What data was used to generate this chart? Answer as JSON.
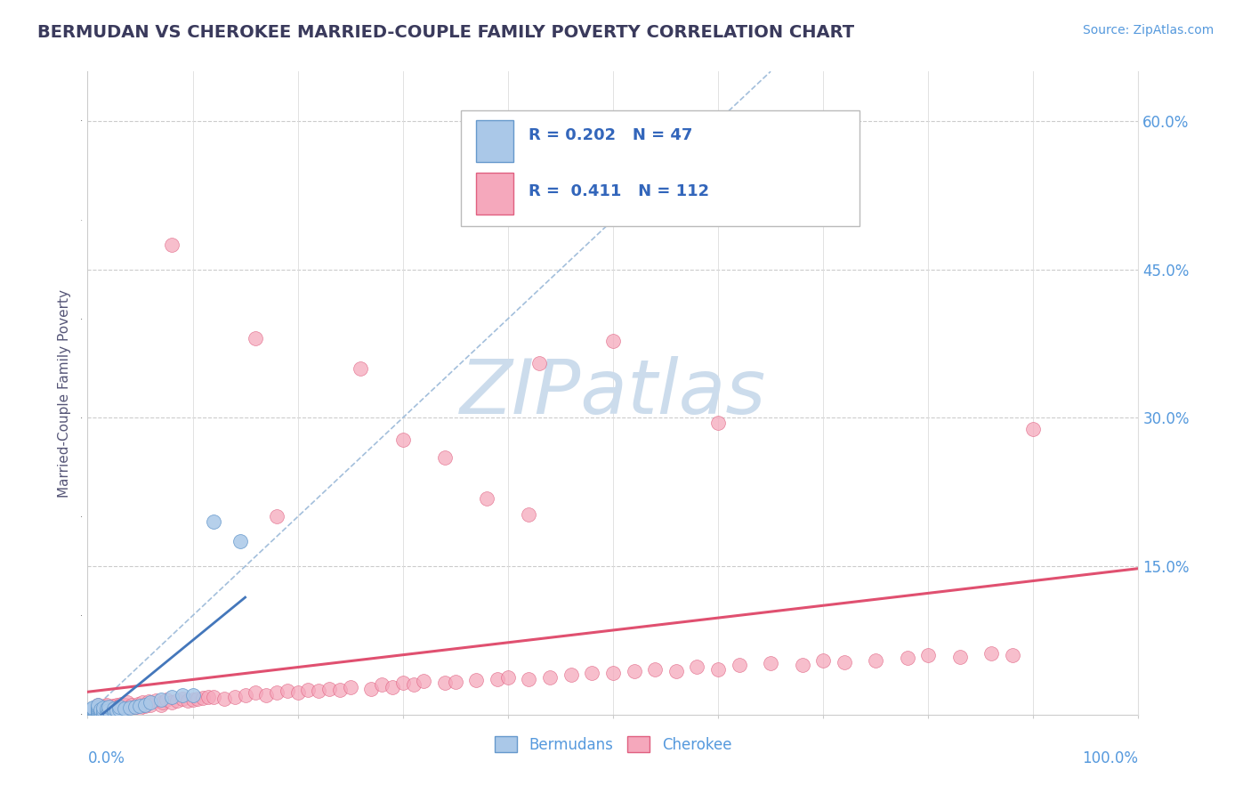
{
  "title": "BERMUDAN VS CHEROKEE MARRIED-COUPLE FAMILY POVERTY CORRELATION CHART",
  "source": "Source: ZipAtlas.com",
  "ylabel": "Married-Couple Family Poverty",
  "x_range": [
    0.0,
    1.0
  ],
  "y_range": [
    0.0,
    0.65
  ],
  "bermudans_R": 0.202,
  "bermudans_N": 47,
  "cherokee_R": 0.411,
  "cherokee_N": 112,
  "bermudan_color": "#aac8e8",
  "cherokee_color": "#f5a8bc",
  "bermudan_edge_color": "#6699cc",
  "cherokee_edge_color": "#e06080",
  "bermudan_line_color": "#4477bb",
  "cherokee_line_color": "#e05070",
  "diagonal_color": "#99b8d8",
  "background_color": "#ffffff",
  "title_color": "#3a3a5c",
  "watermark_color": "#ccdcec",
  "legend_text_color": "#3366bb",
  "axis_label_color": "#5599dd",
  "ylabel_color": "#555577",
  "grid_color": "#cccccc",
  "bermudan_x": [
    0.005,
    0.005,
    0.005,
    0.005,
    0.005,
    0.005,
    0.005,
    0.005,
    0.005,
    0.01,
    0.01,
    0.01,
    0.01,
    0.01,
    0.01,
    0.01,
    0.01,
    0.012,
    0.012,
    0.012,
    0.015,
    0.015,
    0.015,
    0.015,
    0.018,
    0.018,
    0.018,
    0.02,
    0.02,
    0.02,
    0.025,
    0.025,
    0.028,
    0.03,
    0.03,
    0.035,
    0.04,
    0.045,
    0.05,
    0.055,
    0.06,
    0.07,
    0.08,
    0.09,
    0.1,
    0.12,
    0.145
  ],
  "bermudan_y": [
    0.0,
    0.0,
    0.0,
    0.002,
    0.003,
    0.004,
    0.005,
    0.006,
    0.007,
    0.0,
    0.001,
    0.002,
    0.003,
    0.004,
    0.006,
    0.008,
    0.01,
    0.001,
    0.003,
    0.005,
    0.0,
    0.002,
    0.004,
    0.007,
    0.001,
    0.003,
    0.006,
    0.002,
    0.004,
    0.008,
    0.003,
    0.006,
    0.004,
    0.005,
    0.008,
    0.006,
    0.007,
    0.008,
    0.009,
    0.01,
    0.012,
    0.015,
    0.018,
    0.02,
    0.02,
    0.195,
    0.175
  ],
  "cherokee_x": [
    0.005,
    0.006,
    0.007,
    0.008,
    0.009,
    0.01,
    0.01,
    0.01,
    0.01,
    0.01,
    0.012,
    0.012,
    0.013,
    0.014,
    0.015,
    0.015,
    0.015,
    0.016,
    0.017,
    0.018,
    0.02,
    0.02,
    0.022,
    0.024,
    0.025,
    0.026,
    0.028,
    0.03,
    0.03,
    0.032,
    0.034,
    0.036,
    0.038,
    0.04,
    0.042,
    0.045,
    0.048,
    0.05,
    0.052,
    0.055,
    0.058,
    0.06,
    0.065,
    0.07,
    0.072,
    0.075,
    0.08,
    0.085,
    0.09,
    0.095,
    0.1,
    0.105,
    0.11,
    0.115,
    0.12,
    0.13,
    0.14,
    0.15,
    0.16,
    0.17,
    0.18,
    0.19,
    0.2,
    0.21,
    0.22,
    0.23,
    0.24,
    0.25,
    0.27,
    0.28,
    0.29,
    0.3,
    0.31,
    0.32,
    0.34,
    0.35,
    0.37,
    0.39,
    0.4,
    0.42,
    0.44,
    0.46,
    0.48,
    0.5,
    0.52,
    0.54,
    0.56,
    0.58,
    0.6,
    0.62,
    0.65,
    0.68,
    0.7,
    0.72,
    0.75,
    0.78,
    0.8,
    0.83,
    0.86,
    0.88,
    0.08,
    0.16,
    0.43,
    0.5,
    0.34,
    0.18,
    0.26,
    0.3,
    0.38,
    0.42,
    0.6,
    0.9
  ],
  "cherokee_y": [
    0.0,
    0.002,
    0.004,
    0.005,
    0.006,
    0.0,
    0.003,
    0.006,
    0.008,
    0.01,
    0.002,
    0.005,
    0.004,
    0.006,
    0.001,
    0.005,
    0.008,
    0.007,
    0.009,
    0.01,
    0.003,
    0.007,
    0.006,
    0.009,
    0.005,
    0.008,
    0.01,
    0.004,
    0.009,
    0.011,
    0.007,
    0.01,
    0.012,
    0.006,
    0.01,
    0.008,
    0.011,
    0.007,
    0.012,
    0.009,
    0.013,
    0.01,
    0.014,
    0.01,
    0.012,
    0.015,
    0.012,
    0.014,
    0.016,
    0.014,
    0.015,
    0.016,
    0.017,
    0.018,
    0.018,
    0.016,
    0.018,
    0.02,
    0.022,
    0.02,
    0.022,
    0.024,
    0.022,
    0.025,
    0.024,
    0.026,
    0.025,
    0.028,
    0.026,
    0.03,
    0.028,
    0.032,
    0.03,
    0.034,
    0.032,
    0.033,
    0.035,
    0.036,
    0.038,
    0.036,
    0.038,
    0.04,
    0.042,
    0.042,
    0.044,
    0.046,
    0.044,
    0.048,
    0.046,
    0.05,
    0.052,
    0.05,
    0.055,
    0.053,
    0.055,
    0.057,
    0.06,
    0.058,
    0.062,
    0.06,
    0.475,
    0.38,
    0.355,
    0.378,
    0.26,
    0.2,
    0.35,
    0.278,
    0.218,
    0.202,
    0.295,
    0.289
  ]
}
